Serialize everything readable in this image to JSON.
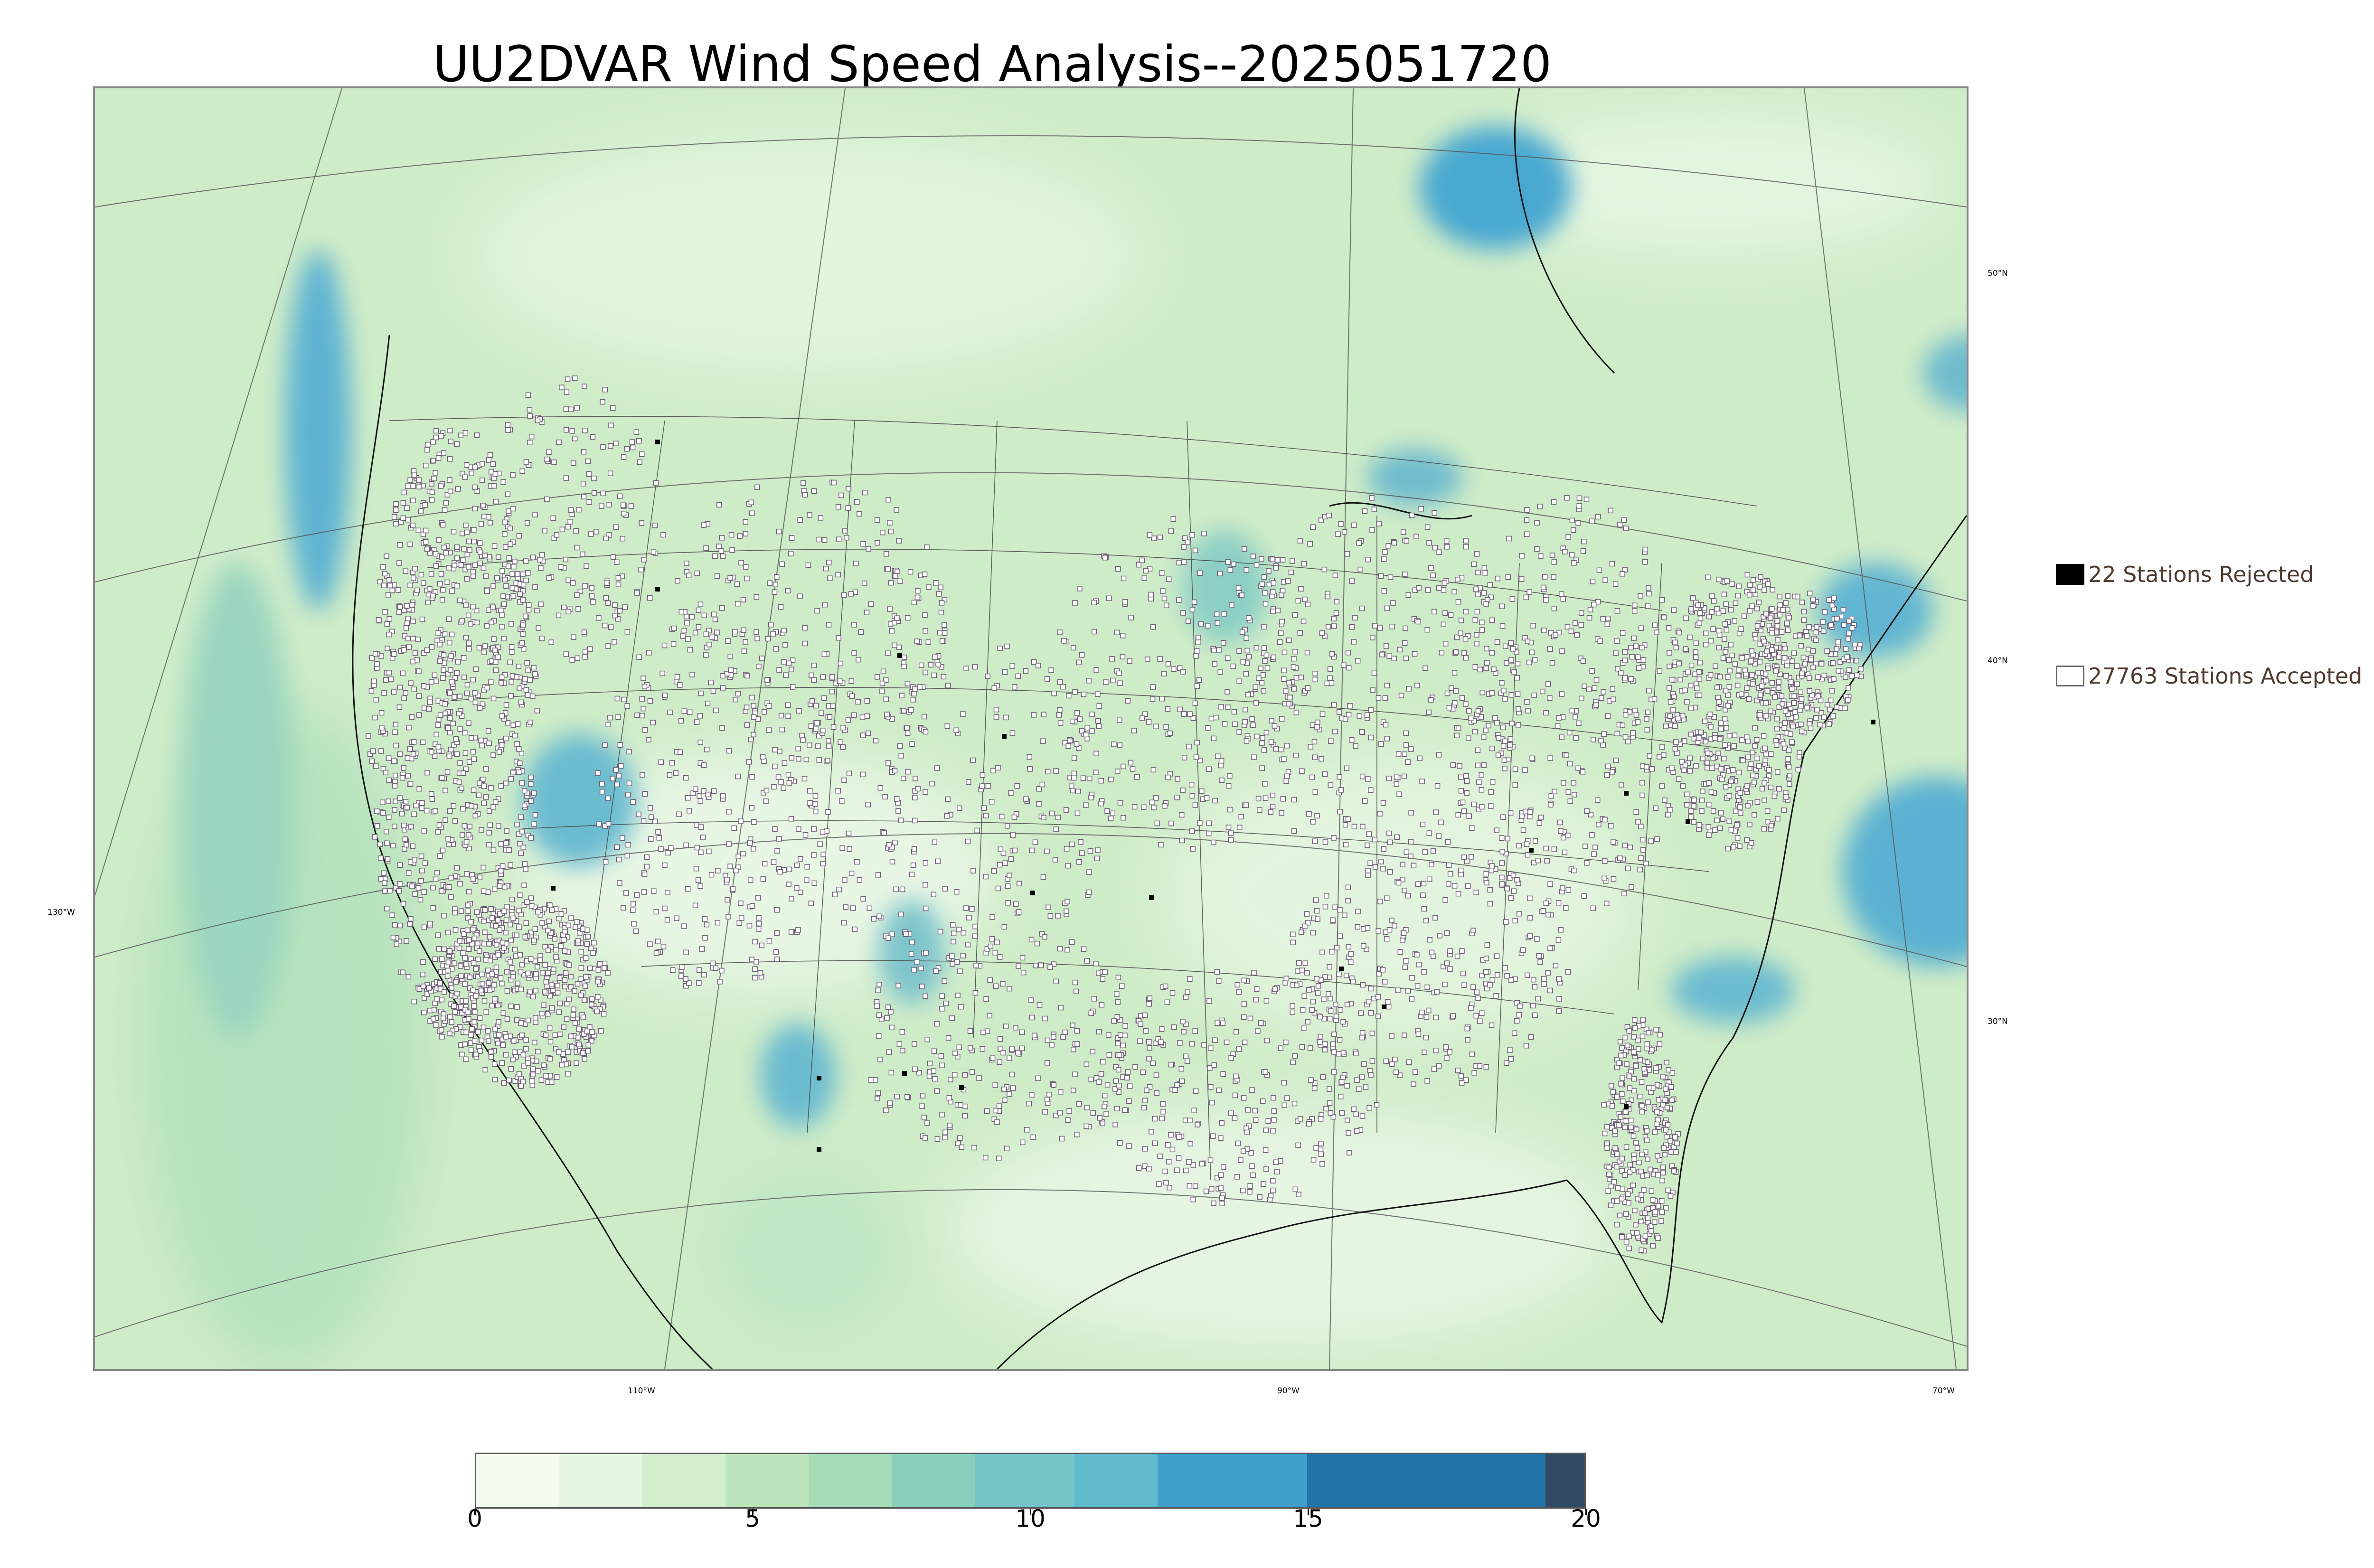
{
  "title": "UU2DVAR Wind Speed Analysis--2025051720",
  "map": {
    "longitude_labels": [
      "110°W",
      "90°W",
      "70°W"
    ],
    "latitude_labels_right": [
      "50°N",
      "40°N",
      "30°N"
    ],
    "latitude_labels_left": [
      "130°W"
    ],
    "colors": {
      "ocean_strong": "#4aa8d0",
      "land_base": "#c9e9c4",
      "light": "#eaf7e6",
      "station_accepted_fill": "#ffffff",
      "station_accepted_edge": "#6b5a72",
      "station_rejected": "#000000",
      "boundary_line": "#333333"
    }
  },
  "legend": {
    "rejected_label": "22 Stations Rejected",
    "accepted_label": "27763 Stations Accepted"
  },
  "colorbar": {
    "tick_labels": [
      "0",
      "5",
      "10",
      "15",
      "20"
    ],
    "min": 0,
    "max": 20,
    "segments": [
      {
        "from": 0,
        "to": 1.5,
        "color": "#f3fbf0"
      },
      {
        "from": 1.5,
        "to": 3,
        "color": "#e6f5e1"
      },
      {
        "from": 3,
        "to": 4.5,
        "color": "#d3eecd"
      },
      {
        "from": 4.5,
        "to": 6,
        "color": "#bde5bc"
      },
      {
        "from": 6,
        "to": 7.5,
        "color": "#a5dbb6"
      },
      {
        "from": 7.5,
        "to": 9,
        "color": "#89d0bc"
      },
      {
        "from": 9,
        "to": 10.8,
        "color": "#73c6c5"
      },
      {
        "from": 10.8,
        "to": 12.3,
        "color": "#5fbbcc"
      },
      {
        "from": 12.3,
        "to": 15,
        "color": "#3e9fcb"
      },
      {
        "from": 15,
        "to": 19.3,
        "color": "#2273a8"
      },
      {
        "from": 19.3,
        "to": 20,
        "color": "#2f4a62"
      }
    ]
  }
}
